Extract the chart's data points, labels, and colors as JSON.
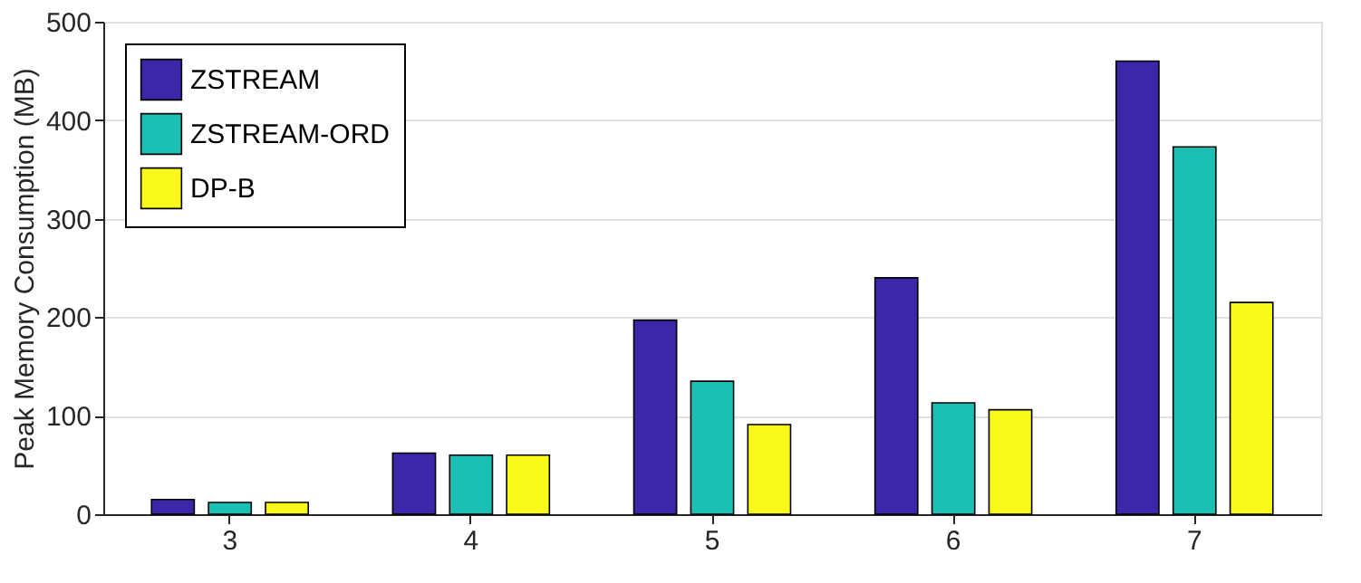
{
  "chart_data": {
    "type": "bar",
    "ylabel": "Peak Memory Consumption (MB)",
    "categories": [
      "3",
      "4",
      "5",
      "6",
      "7"
    ],
    "series": [
      {
        "name": "ZSTREAM",
        "color": "#3b27a8",
        "values": [
          15,
          62,
          197,
          240,
          460
        ]
      },
      {
        "name": "ZSTREAM-ORD",
        "color": "#1cbfb4",
        "values": [
          12,
          60,
          135,
          113,
          373
        ]
      },
      {
        "name": "DP-B",
        "color": "#f8f81a",
        "values": [
          12,
          60,
          91,
          106,
          215
        ]
      }
    ],
    "ylim": [
      0,
      500
    ],
    "yticks": [
      0,
      100,
      200,
      300,
      400,
      500
    ],
    "grid": "y",
    "legend": "top left"
  }
}
